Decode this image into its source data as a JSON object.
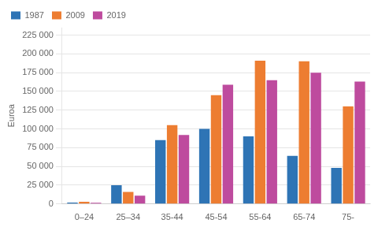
{
  "chart_data": {
    "type": "bar",
    "ylabel": "Euroa",
    "categories": [
      "0–24",
      "25–34",
      "35-44",
      "45-54",
      "55-64",
      "65-74",
      "75-"
    ],
    "series": [
      {
        "name": "1987",
        "color": "#2E74B5",
        "values": [
          2000,
          25000,
          85000,
          100000,
          90000,
          64000,
          48000
        ]
      },
      {
        "name": "2009",
        "color": "#ED7D31",
        "values": [
          3000,
          16000,
          105000,
          145000,
          191000,
          190000,
          130000
        ]
      },
      {
        "name": "2019",
        "color": "#BE4B9E",
        "values": [
          1500,
          11000,
          92000,
          159000,
          165000,
          175000,
          163000
        ]
      }
    ],
    "ylim": [
      0,
      235000
    ],
    "yticks": [
      0,
      {
        "value": 25000,
        "label": "25 000"
      },
      {
        "value": 50000,
        "label": "50 000"
      },
      {
        "value": 75000,
        "label": "75 000"
      },
      {
        "value": 100000,
        "label": "100 000"
      },
      {
        "value": 125000,
        "label": "125 000"
      },
      {
        "value": 150000,
        "label": "150 000"
      },
      {
        "value": 175000,
        "label": "175 000"
      },
      {
        "value": 200000,
        "label": "200 000"
      },
      {
        "value": 225000,
        "label": "225 000"
      }
    ],
    "grid": true,
    "legend": "upper left"
  }
}
